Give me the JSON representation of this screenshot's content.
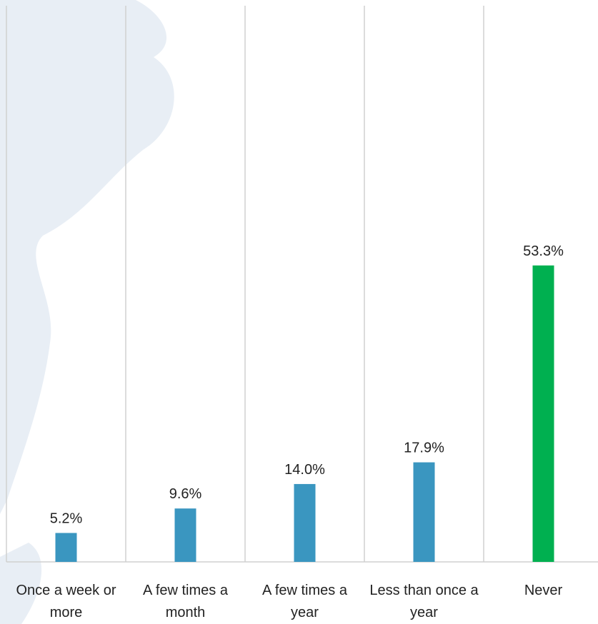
{
  "chart_data": {
    "type": "bar",
    "categories": [
      "Once a week or more",
      "A few times a month",
      "A few times a year",
      "Less than once a year",
      "Never"
    ],
    "values": [
      5.2,
      9.6,
      14.0,
      17.9,
      53.3
    ],
    "value_labels": [
      "5.2%",
      "9.6%",
      "14.0%",
      "17.9%",
      "53.3%"
    ],
    "colors": [
      "#3a96c0",
      "#3a96c0",
      "#3a96c0",
      "#3a96c0",
      "#00b050"
    ],
    "ylim": [
      0,
      100
    ]
  }
}
